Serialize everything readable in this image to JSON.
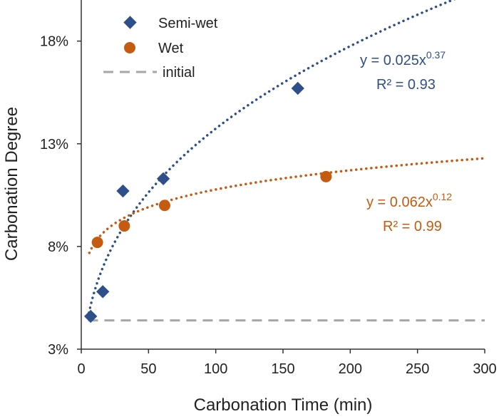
{
  "chart_data": {
    "type": "scatter",
    "title": "",
    "xlabel": "Carbonation Time (min)",
    "ylabel": "Carbonation Degree",
    "xlim": [
      0,
      300
    ],
    "ylim": [
      0.03,
      0.2
    ],
    "xticks": [
      0,
      50,
      100,
      150,
      200,
      250,
      300
    ],
    "xtick_labels": [
      "0",
      "50",
      "100",
      "150",
      "200",
      "250",
      "300"
    ],
    "yticks": [
      0.03,
      0.08,
      0.13,
      0.18
    ],
    "ytick_labels": [
      "3%",
      "8%",
      "13%",
      "18%"
    ],
    "grid": false,
    "legend_position": "top-left",
    "series": [
      {
        "name": "Semi-wet",
        "marker": "diamond",
        "color": "#2f4f8a",
        "x": [
          7,
          16,
          31,
          61,
          161
        ],
        "y": [
          0.046,
          0.058,
          0.107,
          0.113,
          0.157
        ],
        "trendline": {
          "type": "power",
          "a": 0.025,
          "b": 0.37,
          "x_from": 5,
          "x_to": 300,
          "equation_prefix": "y = 0.025x",
          "equation_exponent": "0.37",
          "r2_text": "R² = 0.93"
        }
      },
      {
        "name": "Wet",
        "marker": "circle",
        "color": "#c55a11",
        "x": [
          12,
          32,
          62,
          182
        ],
        "y": [
          0.082,
          0.09,
          0.1,
          0.114
        ],
        "trendline": {
          "type": "power",
          "a": 0.062,
          "b": 0.12,
          "x_from": 6,
          "x_to": 300,
          "equation_prefix": "y = 0.062x",
          "equation_exponent": "0.12",
          "r2_text": "R² = 0.99"
        }
      },
      {
        "name": "initial",
        "marker": "dashed-line",
        "color": "#a6a6a6",
        "x": [
          5,
          300
        ],
        "y": [
          0.044,
          0.044
        ]
      }
    ]
  }
}
